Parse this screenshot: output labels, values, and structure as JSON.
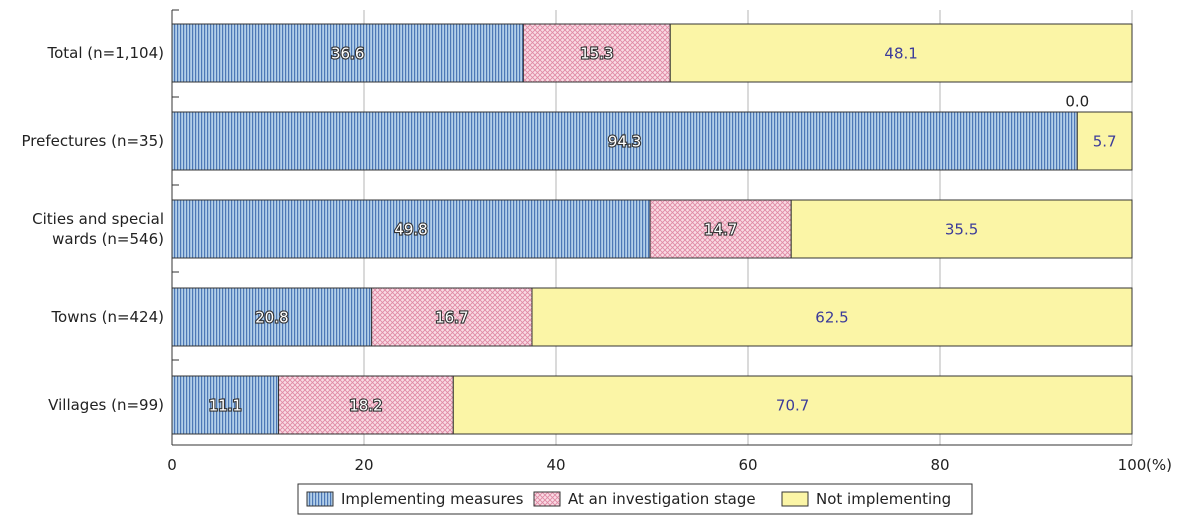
{
  "chart_data": {
    "type": "bar",
    "orientation": "horizontal",
    "stacked": true,
    "categories": [
      [
        "Total (n=1,104)"
      ],
      [
        "Prefectures (n=35)"
      ],
      [
        "Cities and special",
        "wards (n=546)"
      ],
      [
        "Towns (n=424)"
      ],
      [
        "Villages (n=99)"
      ]
    ],
    "series": [
      {
        "name": "Implementing measures",
        "values": [
          36.6,
          94.3,
          49.8,
          20.8,
          11.1
        ],
        "color": "#9dbfe0",
        "stripe": "#4d78b6",
        "label_color": "#ffffff"
      },
      {
        "name": "At an investigation stage",
        "values": [
          15.3,
          0.0,
          14.7,
          16.7,
          18.2
        ],
        "color": "#f6c9d6",
        "stripe": "#d88aa3",
        "label_color": "#ffffff"
      },
      {
        "name": "Not implementing",
        "values": [
          48.1,
          5.7,
          35.5,
          62.5,
          70.7
        ],
        "color": "#fbf5a6",
        "label_color": "#3b3b9a"
      }
    ],
    "xlim": [
      0,
      100
    ],
    "xticks": [
      0,
      20,
      40,
      60,
      80,
      100
    ],
    "xunit": "(%)",
    "grid": true,
    "legend_position": "bottom"
  }
}
